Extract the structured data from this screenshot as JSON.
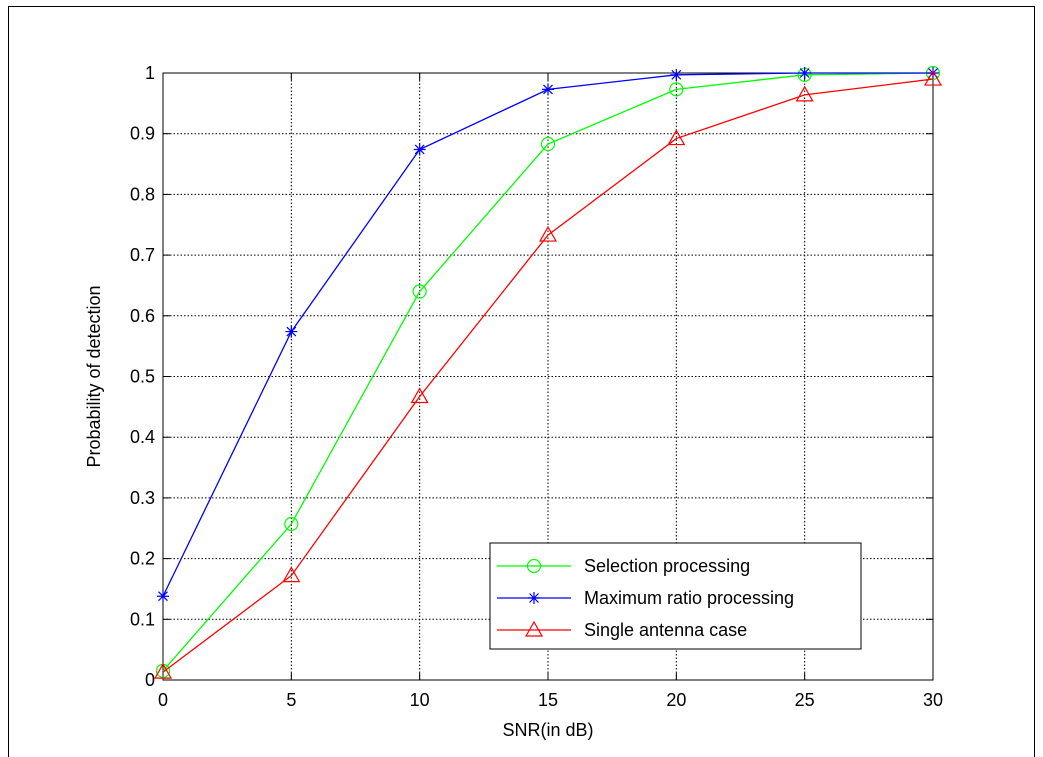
{
  "chart_data": {
    "type": "line",
    "title": "",
    "xlabel": "SNR(in dB)",
    "ylabel": "Probability of detection",
    "xlim": [
      0,
      30
    ],
    "ylim": [
      0,
      1
    ],
    "xticks": [
      0,
      5,
      10,
      15,
      20,
      25,
      30
    ],
    "yticks": [
      0,
      0.1,
      0.2,
      0.3,
      0.4,
      0.5,
      0.6,
      0.7,
      0.8,
      0.9,
      1
    ],
    "xtick_labels": [
      "0",
      "5",
      "10",
      "15",
      "20",
      "25",
      "30"
    ],
    "ytick_labels": [
      "0",
      "0.1",
      "0.2",
      "0.3",
      "0.4",
      "0.5",
      "0.6",
      "0.7",
      "0.8",
      "0.9",
      "1"
    ],
    "grid": true,
    "legend_position": "bottom-right",
    "x": [
      0,
      5,
      10,
      15,
      20,
      25,
      30
    ],
    "series": [
      {
        "name": "Selection processing",
        "color": "#00ff00",
        "marker": "circle",
        "values": [
          0.015,
          0.257,
          0.64,
          0.883,
          0.973,
          0.997,
          1.0
        ]
      },
      {
        "name": "Maximum ratio processing",
        "color": "#0000ff",
        "marker": "star",
        "values": [
          0.138,
          0.574,
          0.874,
          0.973,
          0.997,
          1.0,
          1.0
        ]
      },
      {
        "name": "Single antenna case",
        "color": "#ff0000",
        "marker": "triangle",
        "values": [
          0.013,
          0.172,
          0.467,
          0.733,
          0.892,
          0.964,
          0.99
        ]
      }
    ]
  }
}
